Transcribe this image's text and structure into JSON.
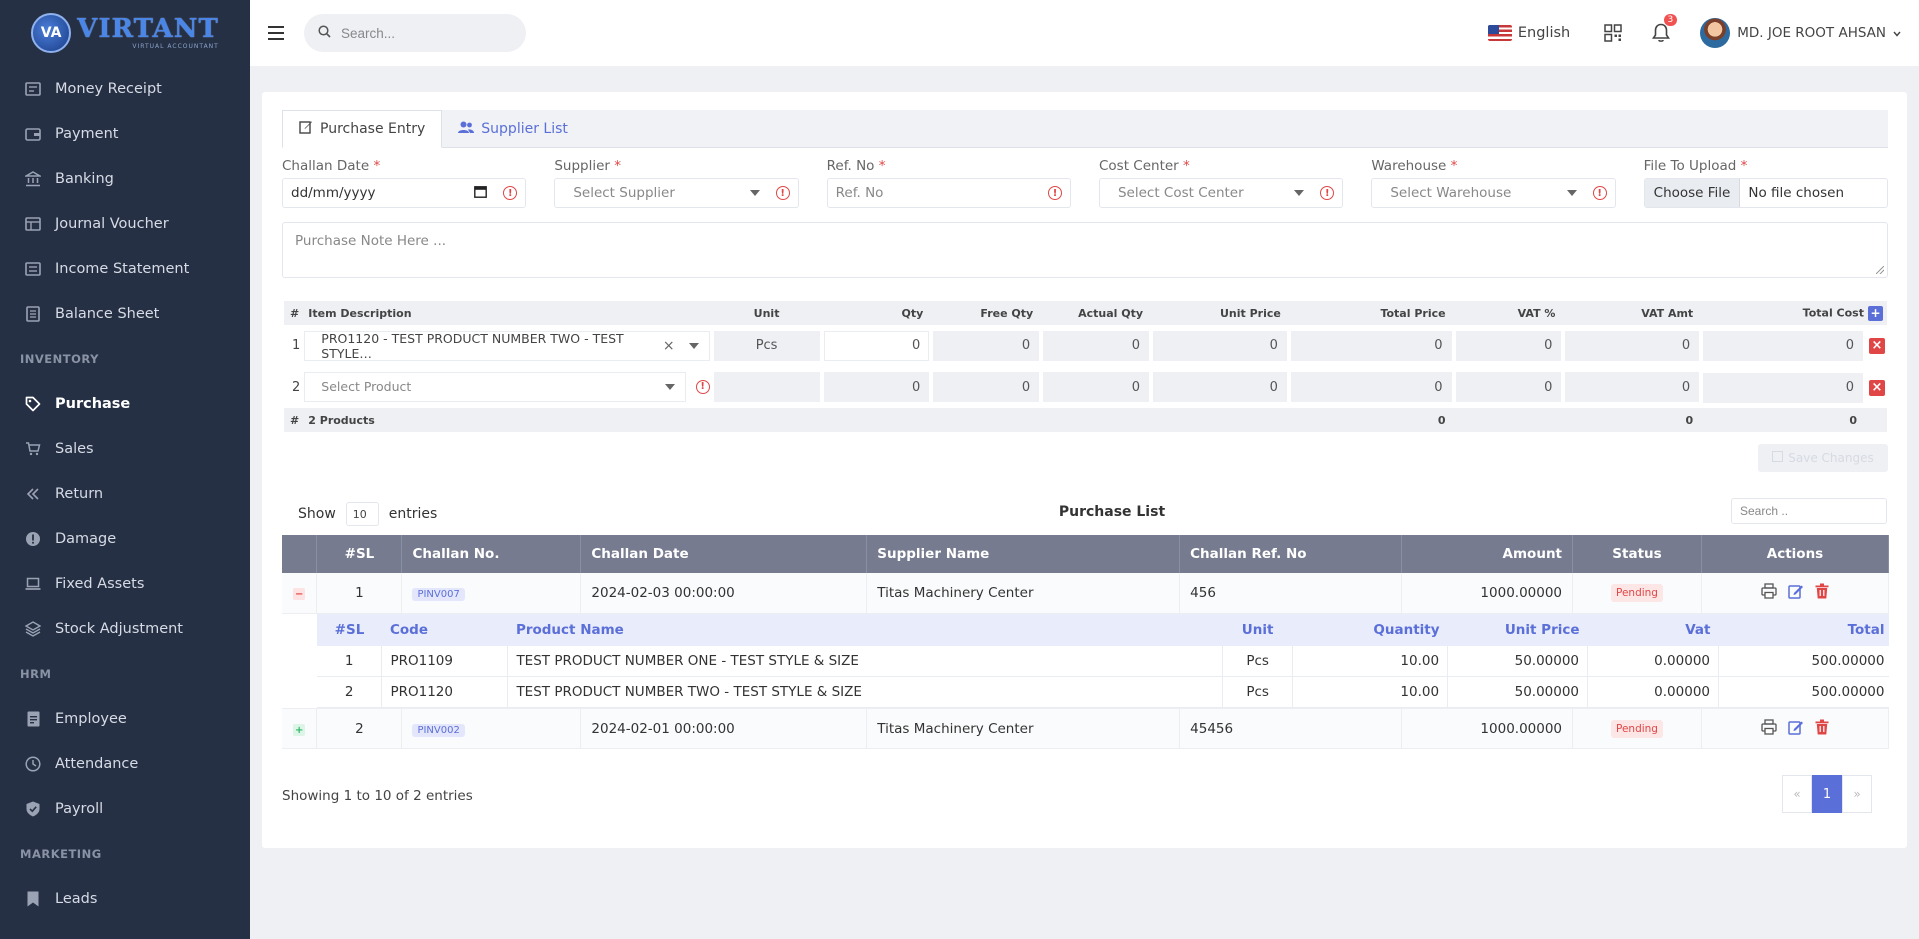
{
  "brand": {
    "name": "VIRTANT",
    "sub": "VIRTUAL ACCOUNTANT",
    "mark": "VA"
  },
  "sidebar": {
    "items": [
      {
        "label": "Money Receipt",
        "icon": "receipt-icon"
      },
      {
        "label": "Payment",
        "icon": "wallet-icon"
      },
      {
        "label": "Banking",
        "icon": "bank-icon"
      },
      {
        "label": "Journal Voucher",
        "icon": "journal-icon"
      },
      {
        "label": "Income Statement",
        "icon": "statement-icon"
      },
      {
        "label": "Balance Sheet",
        "icon": "sheet-icon"
      }
    ],
    "inventory_heading": "INVENTORY",
    "inventory": [
      {
        "label": "Purchase",
        "icon": "tag-icon",
        "active": true
      },
      {
        "label": "Sales",
        "icon": "cart-icon"
      },
      {
        "label": "Return",
        "icon": "return-icon"
      },
      {
        "label": "Damage",
        "icon": "damage-icon"
      },
      {
        "label": "Fixed Assets",
        "icon": "laptop-icon"
      },
      {
        "label": "Stock Adjustment",
        "icon": "layers-icon"
      }
    ],
    "hrm_heading": "HRM",
    "hrm": [
      {
        "label": "Employee",
        "icon": "id-card-icon"
      },
      {
        "label": "Attendance",
        "icon": "clock-icon"
      },
      {
        "label": "Payroll",
        "icon": "shield-icon"
      }
    ],
    "marketing_heading": "MARKETING",
    "marketing": [
      {
        "label": "Leads",
        "icon": "bookmark-icon"
      }
    ]
  },
  "header": {
    "search_placeholder": "Search...",
    "language": "English",
    "notifications": "3",
    "user": "MD. JOE ROOT AHSAN"
  },
  "tabs": {
    "entry": "Purchase Entry",
    "suppliers": "Supplier List"
  },
  "form": {
    "challan_date": {
      "label": "Challan Date",
      "value": "dd/mm/yyyy"
    },
    "supplier": {
      "label": "Supplier",
      "placeholder": "Select Supplier"
    },
    "ref_no": {
      "label": "Ref. No",
      "placeholder": "Ref. No"
    },
    "cost_center": {
      "label": "Cost Center",
      "placeholder": "Select Cost Center"
    },
    "warehouse": {
      "label": "Warehouse",
      "placeholder": "Select Warehouse"
    },
    "file": {
      "label": "File To Upload",
      "button": "Choose File",
      "status": "No file chosen"
    },
    "note_placeholder": "Purchase Note Here ...",
    "req": "*"
  },
  "items": {
    "headers": {
      "hash": "#",
      "desc": "Item Description",
      "unit": "Unit",
      "qty": "Qty",
      "free": "Free Qty",
      "actual": "Actual Qty",
      "price": "Unit Price",
      "total": "Total Price",
      "vatp": "VAT %",
      "vata": "VAT Amt",
      "cost": "Total Cost"
    },
    "rows": [
      {
        "no": "1",
        "product": "PRO1120 - TEST PRODUCT NUMBER TWO - TEST STYLE…",
        "unit": "Pcs",
        "qty": "0",
        "free": "0",
        "actual": "0",
        "price": "0",
        "total": "0",
        "vatp": "0",
        "vata": "0",
        "cost": "0"
      },
      {
        "no": "2",
        "product": "Select Product",
        "unit": "",
        "qty": "0",
        "free": "0",
        "actual": "0",
        "price": "0",
        "total": "0",
        "vatp": "0",
        "vata": "0",
        "cost": "0"
      }
    ],
    "footer": {
      "hash": "#",
      "count": "2 Products",
      "total": "0",
      "vata": "0",
      "cost": "0"
    },
    "save_label": "Save Changes"
  },
  "list": {
    "show": "Show",
    "page_size": "10",
    "entries": "entries",
    "title": "Purchase List",
    "search_placeholder": "Search ..",
    "headers": {
      "sl": "#SL",
      "challan": "Challan No.",
      "date": "Challan Date",
      "supplier": "Supplier Name",
      "ref": "Challan Ref. No",
      "amount": "Amount",
      "status": "Status",
      "actions": "Actions"
    },
    "rows": [
      {
        "sl": "1",
        "challan": "PINV007",
        "date": "2024-02-03 00:00:00",
        "supplier": "Titas Machinery Center",
        "ref": "456",
        "amount": "1000.00000",
        "status": "Pending"
      },
      {
        "sl": "2",
        "challan": "PINV002",
        "date": "2024-02-01 00:00:00",
        "supplier": "Titas Machinery Center",
        "ref": "45456",
        "amount": "1000.00000",
        "status": "Pending"
      }
    ],
    "detail": {
      "headers": {
        "sl": "#SL",
        "code": "Code",
        "name": "Product Name",
        "unit": "Unit",
        "qty": "Quantity",
        "price": "Unit Price",
        "vat": "Vat",
        "total": "Total"
      },
      "rows": [
        {
          "sl": "1",
          "code": "PRO1109",
          "name": "TEST PRODUCT NUMBER ONE - TEST STYLE & SIZE",
          "unit": "Pcs",
          "qty": "10.00",
          "price": "50.00000",
          "vat": "0.00000",
          "total": "500.00000"
        },
        {
          "sl": "2",
          "code": "PRO1120",
          "name": "TEST PRODUCT NUMBER TWO - TEST STYLE & SIZE",
          "unit": "Pcs",
          "qty": "10.00",
          "price": "50.00000",
          "vat": "0.00000",
          "total": "500.00000"
        }
      ]
    },
    "showing": "Showing 1 to 10 of 2 entries",
    "pager": {
      "prev": "«",
      "page": "1",
      "next": "»"
    }
  }
}
